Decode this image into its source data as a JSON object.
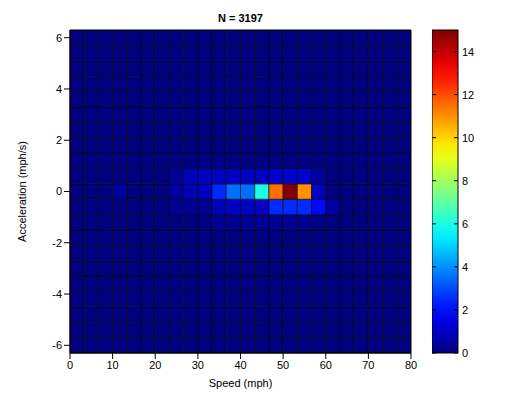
{
  "chart_data": {
    "type": "heatmap",
    "title": "N = 3197",
    "x_label": "Speed (mph)",
    "y_label": "Acceleration (mph/s)",
    "xlim": [
      0,
      80
    ],
    "xticks": [
      0,
      10,
      20,
      30,
      40,
      50,
      60,
      70,
      80
    ],
    "ylim": [
      -6.3,
      6.3
    ],
    "yticks": [
      -6,
      -4,
      -2,
      0,
      2,
      4,
      6
    ],
    "x_bins": [
      0,
      3.33,
      6.67,
      10,
      13.33,
      16.67,
      20,
      23.33,
      26.67,
      30,
      33.33,
      36.67,
      40,
      43.33,
      46.67,
      50,
      53.33,
      56.67,
      60,
      63.33,
      66.67,
      70,
      73.33,
      76.67,
      80
    ],
    "y_bins": [
      -6.3,
      -5.7,
      -5.1,
      -4.5,
      -3.9,
      -3.3,
      -2.7,
      -2.1,
      -1.5,
      -0.9,
      -0.3,
      0.3,
      0.9,
      1.5,
      2.1,
      2.7,
      3.3,
      3.9,
      4.5,
      5.1,
      5.7,
      6.3
    ],
    "counts": [
      [
        0,
        0,
        0,
        0,
        0,
        0,
        0,
        0,
        0,
        0,
        0,
        0,
        0,
        0,
        0,
        0,
        0,
        0,
        0,
        0,
        0,
        0,
        0,
        0
      ],
      [
        0,
        0,
        0,
        0,
        0,
        0,
        0,
        0,
        0,
        0,
        0,
        0,
        0,
        0,
        0,
        0,
        0,
        0,
        0,
        0,
        0,
        0,
        0,
        0
      ],
      [
        0,
        0,
        0,
        0,
        0,
        0,
        0,
        0,
        0,
        0,
        0,
        0,
        0,
        0,
        0,
        0,
        0,
        0,
        0,
        0,
        0,
        0,
        0,
        0
      ],
      [
        0,
        0,
        0,
        0,
        0,
        0,
        0,
        0,
        0,
        0,
        0,
        0,
        0,
        0,
        0,
        0,
        0,
        0,
        0,
        0,
        0,
        0,
        0,
        0
      ],
      [
        0,
        0,
        0,
        0,
        0,
        0,
        0,
        0,
        0,
        0,
        0,
        0,
        0,
        0,
        0,
        0,
        0,
        0,
        0,
        0,
        0,
        0,
        0,
        0
      ],
      [
        0,
        0,
        0,
        0,
        0,
        0,
        0,
        0,
        0,
        0,
        0,
        0,
        0,
        0,
        0,
        0,
        0,
        0,
        0,
        0,
        0,
        0,
        0,
        0
      ],
      [
        0,
        0,
        0,
        0,
        0,
        0,
        0,
        0,
        0,
        0,
        0,
        0,
        0,
        0,
        0,
        0,
        0,
        0,
        0,
        0,
        0,
        0,
        0,
        0
      ],
      [
        0,
        0,
        0,
        0,
        0,
        0,
        0,
        0,
        0,
        0,
        0,
        0,
        0,
        0,
        0,
        0,
        0,
        0,
        0,
        0,
        0,
        0,
        0,
        0
      ],
      [
        0,
        0,
        0,
        0,
        0,
        0,
        0,
        0,
        0,
        0,
        0.3,
        0.3,
        0.3,
        0.3,
        0.3,
        0.3,
        0.3,
        0,
        0,
        0,
        0,
        0,
        0,
        0
      ],
      [
        0,
        0,
        0,
        0,
        0,
        0,
        0,
        0.3,
        0.3,
        0.3,
        0.8,
        1,
        1,
        1,
        2.5,
        2.5,
        2.5,
        2,
        0.5,
        0,
        0,
        0,
        0,
        0
      ],
      [
        0,
        0,
        0,
        0.5,
        0,
        0,
        0,
        0.5,
        0.8,
        1,
        2.5,
        3.5,
        3.5,
        6,
        11.5,
        15,
        11,
        1,
        0,
        0,
        0,
        0,
        0,
        0
      ],
      [
        0,
        0,
        0,
        0,
        0,
        0,
        0,
        0.3,
        1,
        1,
        1,
        1,
        1,
        1,
        1.2,
        1.2,
        1.2,
        0.5,
        0,
        0,
        0,
        0,
        0,
        0
      ],
      [
        0,
        0,
        0,
        0,
        0,
        0,
        0,
        0,
        0,
        0,
        0,
        0,
        0,
        0,
        0,
        0,
        0,
        0,
        0,
        0,
        0,
        0,
        0,
        0
      ],
      [
        0,
        0,
        0,
        0,
        0,
        0,
        0,
        0,
        0,
        0,
        0,
        0,
        0,
        0,
        0,
        0,
        0,
        0,
        0,
        0,
        0,
        0,
        0,
        0
      ],
      [
        0,
        0,
        0,
        0,
        0,
        0,
        0,
        0,
        0,
        0,
        0,
        0,
        0,
        0,
        0,
        0,
        0,
        0,
        0,
        0,
        0,
        0,
        0,
        0
      ],
      [
        0,
        0,
        0,
        0,
        0,
        0,
        0,
        0,
        0,
        0,
        0,
        0,
        0,
        0,
        0,
        0,
        0,
        0,
        0,
        0,
        0,
        0,
        0,
        0
      ],
      [
        0,
        0,
        0,
        0,
        0,
        0,
        0,
        0,
        0,
        0,
        0,
        0,
        0,
        0,
        0,
        0,
        0,
        0,
        0,
        0,
        0,
        0,
        0,
        0
      ],
      [
        0,
        0,
        0,
        0,
        0,
        0,
        0,
        0,
        0,
        0,
        0,
        0,
        0,
        0,
        0,
        0,
        0,
        0,
        0,
        0,
        0,
        0,
        0,
        0
      ],
      [
        0,
        0,
        0,
        0,
        0,
        0,
        0,
        0,
        0,
        0,
        0,
        0,
        0,
        0,
        0,
        0,
        0,
        0,
        0,
        0,
        0,
        0,
        0,
        0
      ],
      [
        0,
        0,
        0,
        0,
        0,
        0,
        0,
        0,
        0,
        0,
        0,
        0,
        0,
        0,
        0,
        0,
        0,
        0,
        0,
        0,
        0,
        0,
        0,
        0
      ],
      [
        0,
        0,
        0,
        0,
        0,
        0,
        0,
        0,
        0,
        0,
        0,
        0,
        0,
        0,
        0,
        0,
        0,
        0,
        0,
        0,
        0,
        0,
        0,
        0
      ]
    ],
    "colorbar": {
      "range": [
        0,
        15
      ],
      "ticks": [
        0,
        2,
        4,
        6,
        8,
        10,
        12,
        14
      ]
    }
  }
}
